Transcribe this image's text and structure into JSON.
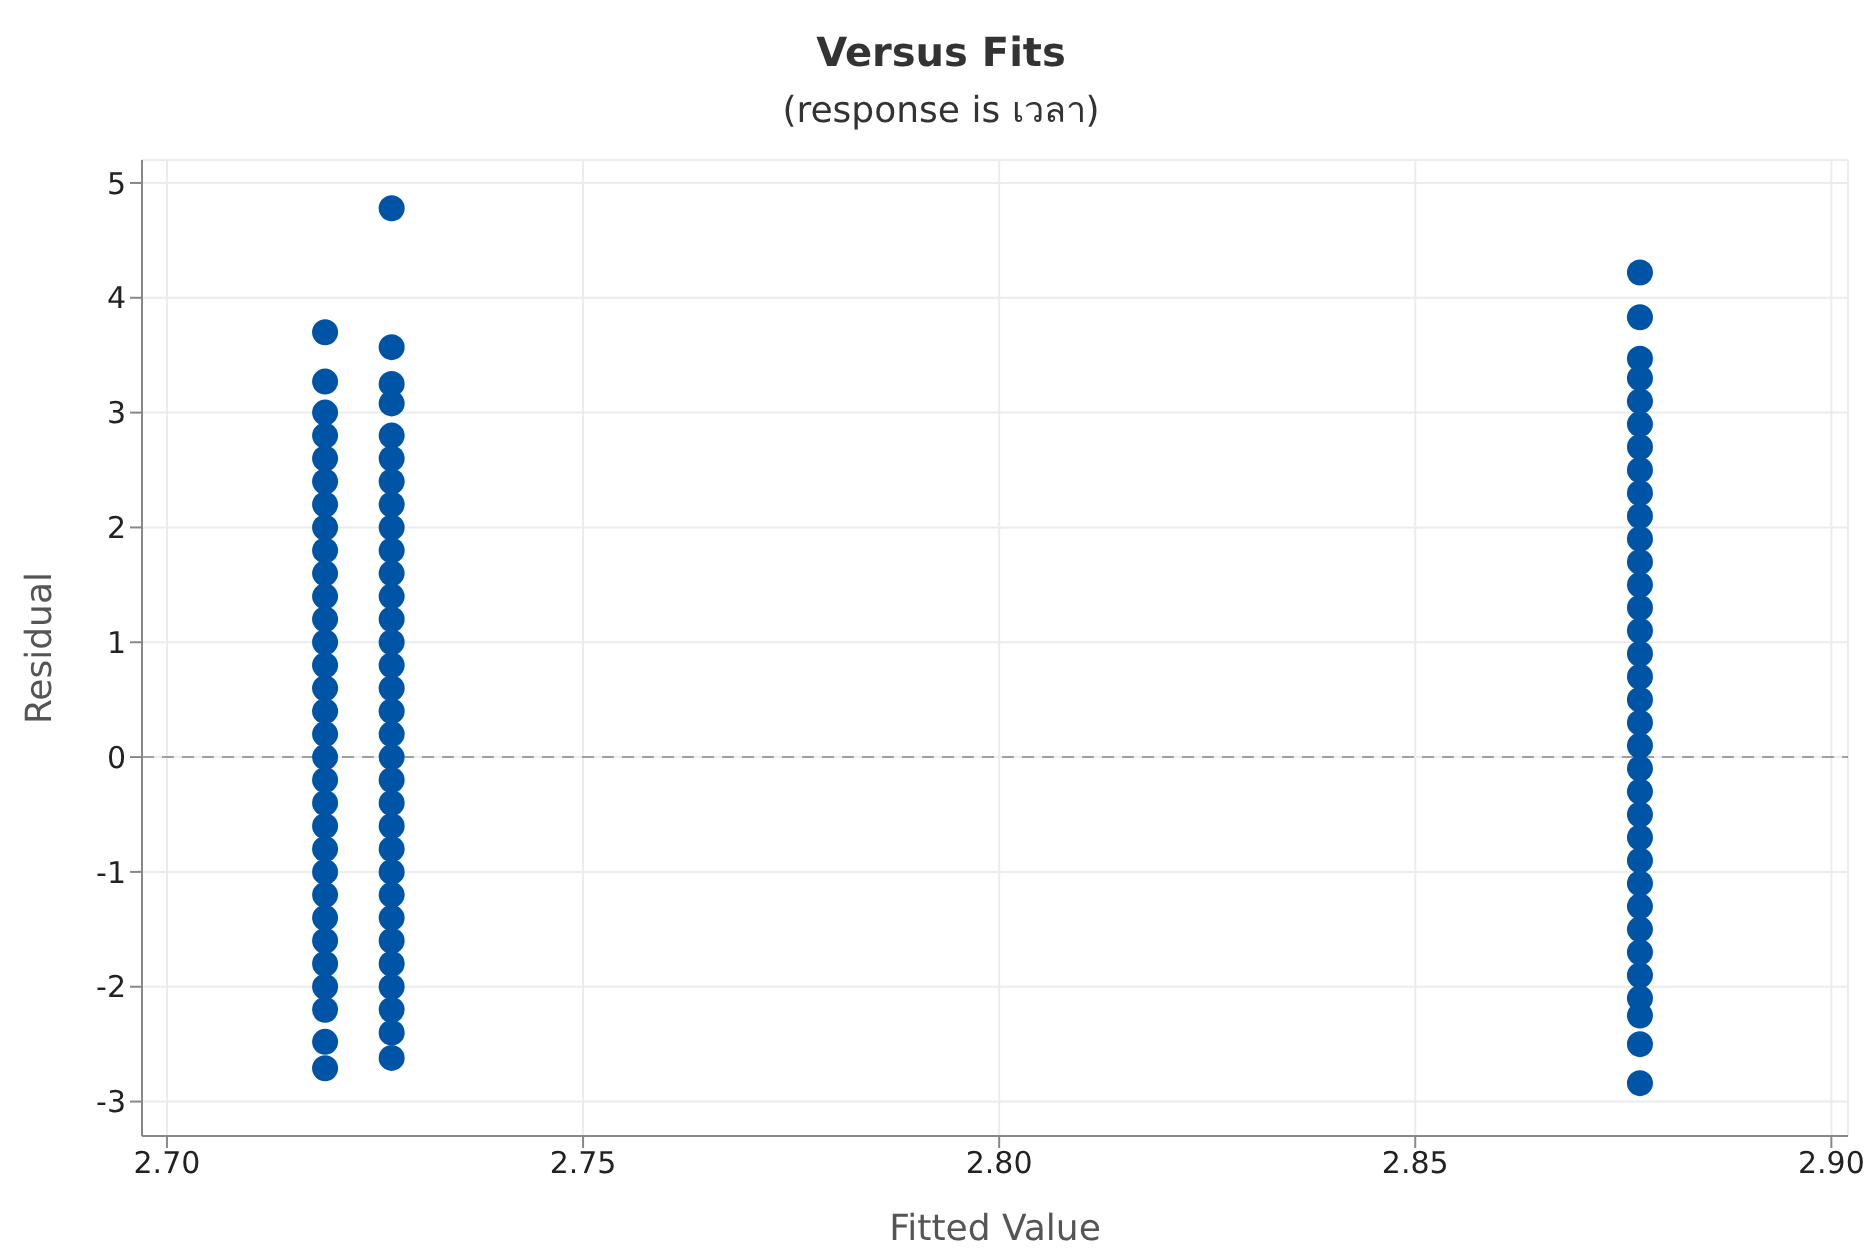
{
  "chart_data": {
    "type": "scatter",
    "title": "Versus Fits",
    "subtitle": "(response is เวลา)",
    "xlabel": "Fitted Value",
    "ylabel": "Residual",
    "xlim": [
      2.697,
      2.902
    ],
    "xticks": [
      {
        "value": 2.7,
        "label": "2.70"
      },
      {
        "value": 2.75,
        "label": "2.75"
      },
      {
        "value": 2.8,
        "label": "2.80"
      },
      {
        "value": 2.85,
        "label": "2.85"
      },
      {
        "value": 2.9,
        "label": "2.90"
      }
    ],
    "ylim": [
      -3.3,
      5.2
    ],
    "yticks": [
      -3,
      -2,
      -1,
      0,
      1,
      2,
      3,
      4,
      5
    ],
    "grid": true,
    "marker": "circle",
    "ref_lines": [
      {
        "axis": "y",
        "value": 0,
        "color": "#a0a0a0",
        "line_style": "dashed"
      }
    ],
    "series": [
      {
        "color": "#0054a6",
        "x": [
          2.719,
          2.719,
          2.719,
          2.719,
          2.719,
          2.719,
          2.719,
          2.719,
          2.719,
          2.719,
          2.719,
          2.719,
          2.719,
          2.719,
          2.719,
          2.719,
          2.719,
          2.719,
          2.719,
          2.719,
          2.719,
          2.719,
          2.719,
          2.719,
          2.719,
          2.719,
          2.719,
          2.719,
          2.719,
          2.719,
          2.719
        ],
        "values": [
          3.7,
          3.27,
          3.0,
          2.8,
          2.6,
          2.4,
          2.2,
          2.0,
          1.8,
          1.6,
          1.4,
          1.2,
          1.0,
          0.8,
          0.6,
          0.4,
          0.2,
          0,
          -0.2,
          -0.4,
          -0.6,
          -0.8,
          -1.0,
          -1.2,
          -1.4,
          -1.6,
          -1.8,
          -2.0,
          -2.2,
          -2.48,
          -2.71
        ]
      },
      {
        "color": "#0054a6",
        "x": [
          2.727,
          2.727,
          2.727,
          2.727,
          2.727,
          2.727,
          2.727,
          2.727,
          2.727,
          2.727,
          2.727,
          2.727,
          2.727,
          2.727,
          2.727,
          2.727,
          2.727,
          2.727,
          2.727,
          2.727,
          2.727,
          2.727,
          2.727,
          2.727,
          2.727,
          2.727,
          2.727,
          2.727,
          2.727,
          2.727,
          2.727,
          2.727
        ],
        "values": [
          4.78,
          3.57,
          3.25,
          3.08,
          2.8,
          2.6,
          2.4,
          2.2,
          2.0,
          1.8,
          1.6,
          1.4,
          1.2,
          1.0,
          0.8,
          0.6,
          0.4,
          0.2,
          0,
          -0.2,
          -0.4,
          -0.6,
          -0.8,
          -1.0,
          -1.2,
          -1.4,
          -1.6,
          -1.8,
          -2.0,
          -2.2,
          -2.4,
          -2.62
        ]
      },
      {
        "color": "#0054a6",
        "x": [
          2.877,
          2.877,
          2.877,
          2.877,
          2.877,
          2.877,
          2.877,
          2.877,
          2.877,
          2.877,
          2.877,
          2.877,
          2.877,
          2.877,
          2.877,
          2.877,
          2.877,
          2.877,
          2.877,
          2.877,
          2.877,
          2.877,
          2.877,
          2.877,
          2.877,
          2.877,
          2.877,
          2.877,
          2.877,
          2.877,
          2.877,
          2.877,
          2.877,
          2.877
        ],
        "values": [
          4.22,
          3.83,
          3.47,
          3.3,
          3.1,
          2.9,
          2.7,
          2.5,
          2.3,
          2.1,
          1.9,
          1.7,
          1.5,
          1.3,
          1.1,
          0.9,
          0.7,
          0.5,
          0.3,
          0.1,
          -0.1,
          -0.3,
          -0.5,
          -0.7,
          -0.9,
          -1.1,
          -1.3,
          -1.5,
          -1.7,
          -1.9,
          -2.1,
          -2.25,
          -2.5,
          -2.84
        ]
      }
    ]
  }
}
